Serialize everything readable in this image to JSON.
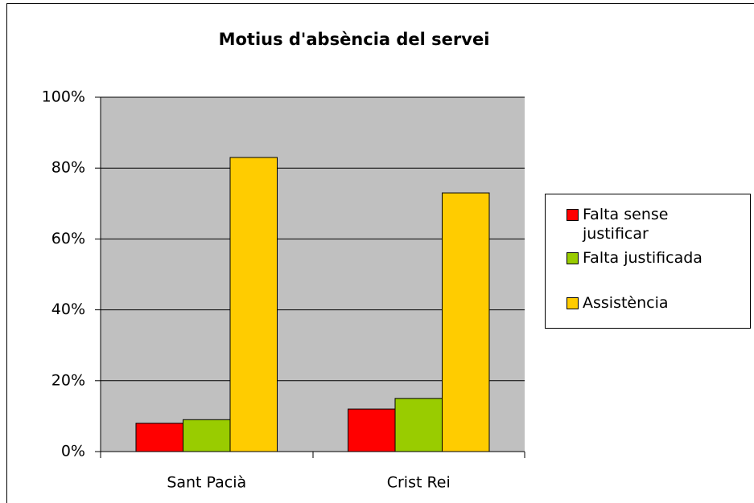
{
  "chart_data": {
    "type": "bar",
    "title": "Motius d'absència del servei",
    "categories": [
      "Sant Pacià",
      "Crist Rei"
    ],
    "series": [
      {
        "name": "Falta sense justificar",
        "color": "#ff0000",
        "values": [
          8,
          12
        ]
      },
      {
        "name": "Falta justificada",
        "color": "#99cc00",
        "values": [
          9,
          15
        ]
      },
      {
        "name": "Assistència",
        "color": "#ffcc00",
        "values": [
          83,
          73
        ]
      }
    ],
    "ylim": [
      0,
      100
    ],
    "yticks": [
      {
        "value": 0,
        "label": "0%"
      },
      {
        "value": 20,
        "label": "20%"
      },
      {
        "value": 40,
        "label": "40%"
      },
      {
        "value": 60,
        "label": "60%"
      },
      {
        "value": 80,
        "label": "80%"
      },
      {
        "value": 100,
        "label": "100%"
      }
    ],
    "grid": true,
    "legend": "right",
    "plot_background": "#c0c0c0"
  }
}
